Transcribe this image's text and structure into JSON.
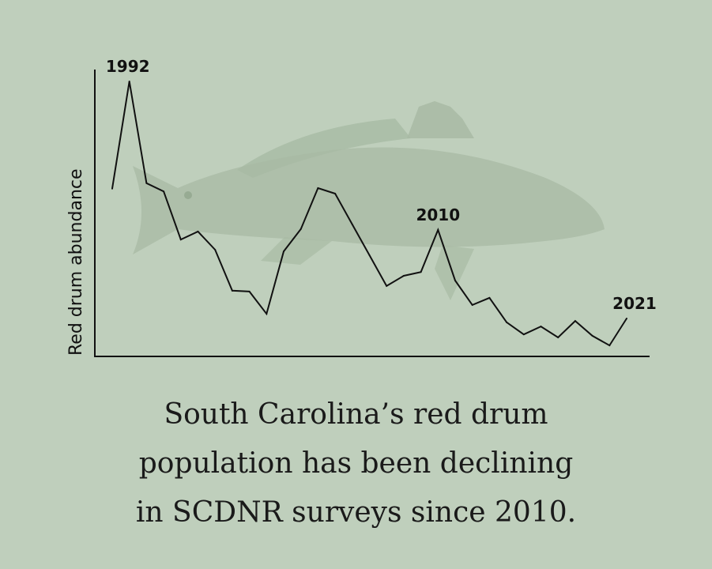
{
  "chart_data": {
    "type": "line",
    "title": "",
    "xlabel": "",
    "ylabel": "Red drum abundance",
    "x": [
      1991,
      1992,
      1993,
      1994,
      1995,
      1996,
      1997,
      1998,
      1999,
      2000,
      2001,
      2002,
      2003,
      2004,
      2005,
      2006,
      2007,
      2008,
      2009,
      2010,
      2011,
      2012,
      2013,
      2014,
      2015,
      2016,
      2017,
      2018,
      2019,
      2020,
      2021
    ],
    "series": [
      {
        "name": "Red drum abundance (relative index)",
        "values": [
          61,
          100,
          63,
          60,
          42.5,
          45.4,
          38.8,
          23.9,
          23.6,
          15.5,
          38.2,
          46.3,
          61.2,
          59.2,
          48,
          36.8,
          25.6,
          29.3,
          30.7,
          46,
          27.6,
          18.7,
          21.3,
          12.4,
          8,
          10.9,
          6.9,
          12.9,
          7.5,
          4,
          13.8
        ]
      }
    ],
    "ylim": [
      0,
      104
    ],
    "xlim": [
      1990,
      2023
    ],
    "grid": false,
    "annotations": [
      {
        "year": 1992,
        "label": "1992"
      },
      {
        "year": 2010,
        "label": "2010"
      },
      {
        "year": 2021,
        "label": "2021"
      }
    ]
  },
  "caption": {
    "lines": [
      "South Carolina’s red drum",
      "population has been declining",
      "in SCDNR surveys since 2010."
    ]
  },
  "colors": {
    "background": "#bfcfbc",
    "line": "#111111",
    "fish": "#a6b8a2"
  }
}
